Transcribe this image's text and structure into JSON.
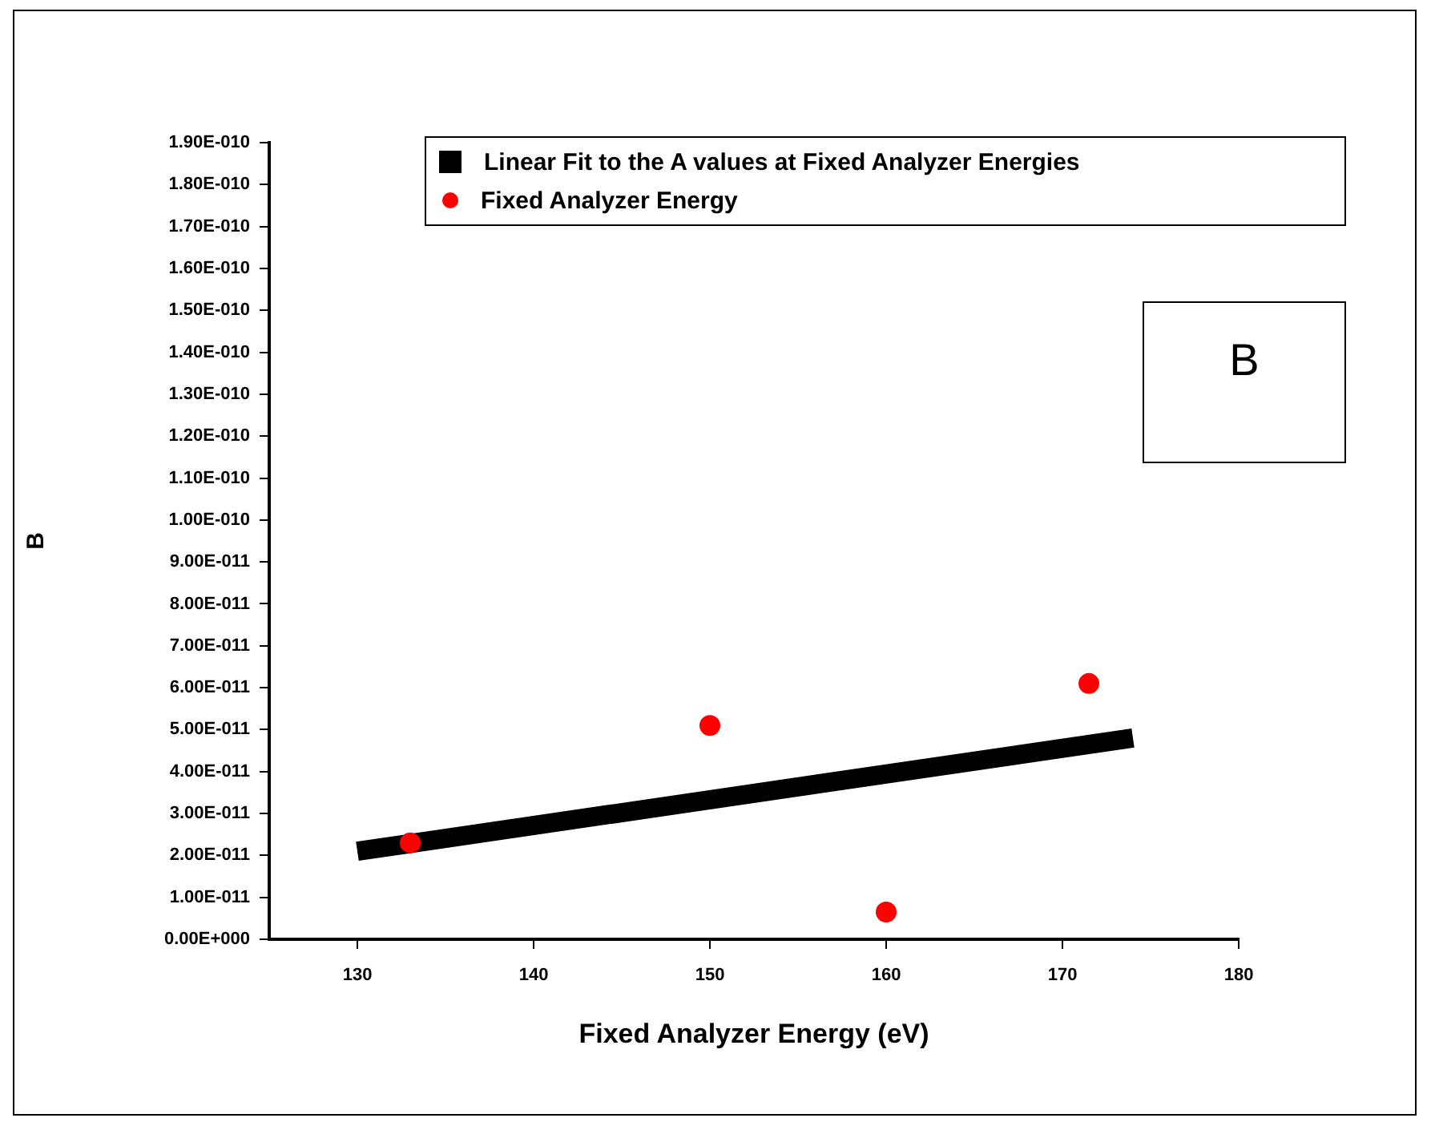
{
  "chart_data": {
    "type": "scatter",
    "xlabel": "Fixed Analyzer Energy (eV)",
    "ylabel": "B",
    "annotations": [
      "B"
    ],
    "legend": "top right",
    "grid": false,
    "xlim": [
      125,
      180
    ],
    "xticks": [
      130,
      140,
      150,
      160,
      170,
      180
    ],
    "ylim": [
      0,
      1.9e-10
    ],
    "yticks": [
      {
        "value": 0,
        "label": "0.00E+000"
      },
      {
        "value": 1e-11,
        "label": "1.00E-011"
      },
      {
        "value": 2e-11,
        "label": "2.00E-011"
      },
      {
        "value": 3e-11,
        "label": "3.00E-011"
      },
      {
        "value": 4e-11,
        "label": "4.00E-011"
      },
      {
        "value": 5e-11,
        "label": "5.00E-011"
      },
      {
        "value": 6e-11,
        "label": "6.00E-011"
      },
      {
        "value": 7e-11,
        "label": "7.00E-011"
      },
      {
        "value": 8e-11,
        "label": "8.00E-011"
      },
      {
        "value": 9e-11,
        "label": "9.00E-011"
      },
      {
        "value": 1e-10,
        "label": "1.00E-010"
      },
      {
        "value": 1.1e-10,
        "label": "1.10E-010"
      },
      {
        "value": 1.2e-10,
        "label": "1.20E-010"
      },
      {
        "value": 1.3e-10,
        "label": "1.30E-010"
      },
      {
        "value": 1.4e-10,
        "label": "1.40E-010"
      },
      {
        "value": 1.5e-10,
        "label": "1.50E-010"
      },
      {
        "value": 1.6e-10,
        "label": "1.60E-010"
      },
      {
        "value": 1.7e-10,
        "label": "1.70E-010"
      },
      {
        "value": 1.8e-10,
        "label": "1.80E-010"
      },
      {
        "value": 1.9e-10,
        "label": "1.90E-010"
      }
    ],
    "series": [
      {
        "name": "Linear Fit to the A values at Fixed Analyzer Energies",
        "type": "line",
        "color": "#000000",
        "x": [
          130,
          174
        ],
        "values": [
          2.1e-11,
          4.8e-11
        ]
      },
      {
        "name": "Fixed Analyzer Energy",
        "type": "scatter",
        "marker": "circle",
        "color": "#ff0000",
        "x": [
          133,
          150,
          160,
          171.5
        ],
        "values": [
          2.3e-11,
          5.1e-11,
          6.5e-12,
          6.1e-11
        ]
      }
    ]
  }
}
